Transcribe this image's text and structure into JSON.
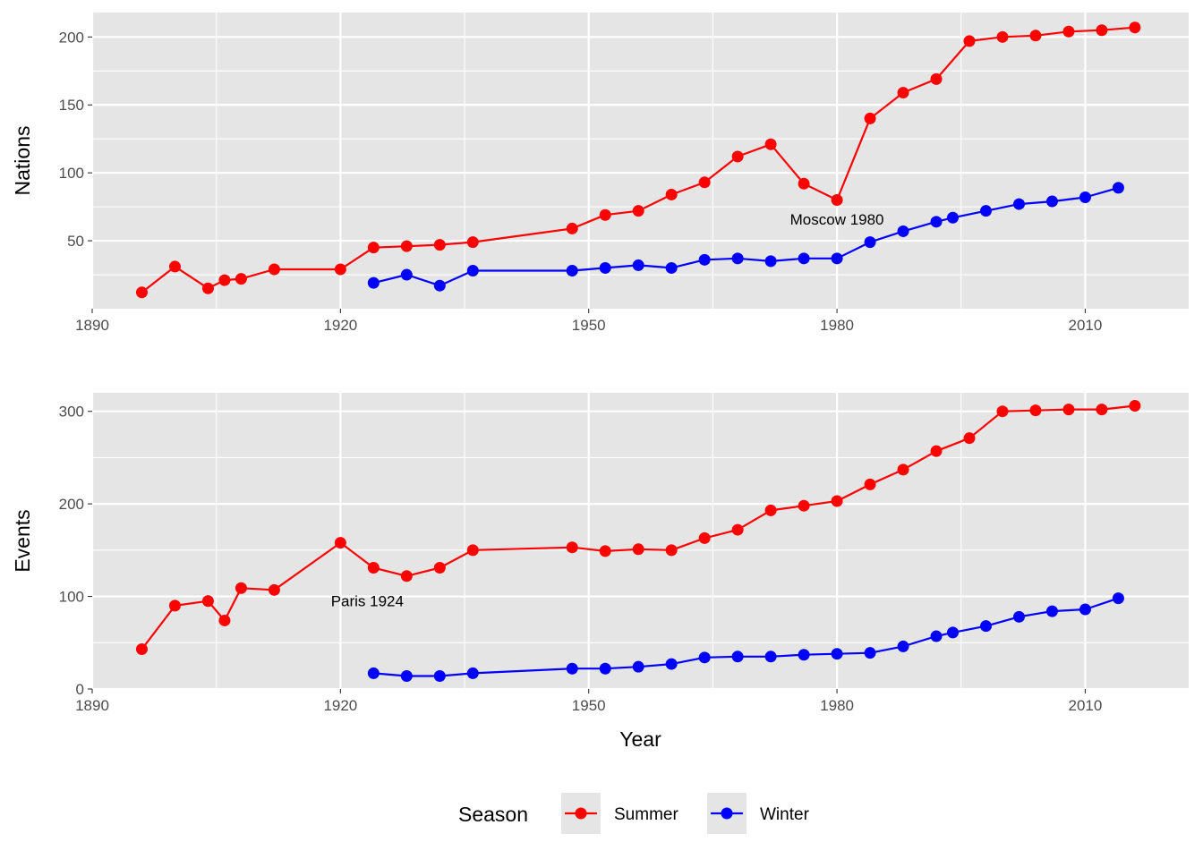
{
  "chart_data": [
    {
      "type": "line",
      "ylabel": "Nations",
      "xlabel": "",
      "xlim": [
        1890,
        2022.5
      ],
      "ylim": [
        0,
        218
      ],
      "xticks": [
        1890,
        1920,
        1950,
        1980,
        2010
      ],
      "yticks": [
        50,
        100,
        150,
        200
      ],
      "grid": true,
      "series": [
        {
          "name": "Summer",
          "color": "#ff0000",
          "x": [
            1896,
            1900,
            1904,
            1906,
            1908,
            1912,
            1920,
            1924,
            1928,
            1932,
            1936,
            1948,
            1952,
            1956,
            1960,
            1964,
            1968,
            1972,
            1976,
            1980,
            1984,
            1988,
            1992,
            1996,
            2000,
            2004,
            2008,
            2012,
            2016
          ],
          "values": [
            12,
            31,
            15,
            21,
            22,
            29,
            29,
            45,
            46,
            47,
            49,
            59,
            69,
            72,
            84,
            93,
            112,
            121,
            92,
            80,
            140,
            159,
            169,
            197,
            200,
            201,
            204,
            205,
            207
          ]
        },
        {
          "name": "Winter",
          "color": "#0000ff",
          "x": [
            1924,
            1928,
            1932,
            1936,
            1948,
            1952,
            1956,
            1960,
            1964,
            1968,
            1972,
            1976,
            1980,
            1984,
            1988,
            1992,
            1994,
            1998,
            2002,
            2006,
            2010,
            2014
          ],
          "values": [
            19,
            25,
            17,
            28,
            28,
            30,
            32,
            30,
            36,
            37,
            35,
            37,
            37,
            49,
            57,
            64,
            67,
            72,
            77,
            79,
            82,
            89
          ]
        }
      ],
      "annotations": [
        {
          "text": "Moscow 1980",
          "x": 1980,
          "y": 66
        }
      ]
    },
    {
      "type": "line",
      "ylabel": "Events",
      "xlabel": "Year",
      "xlim": [
        1890,
        2022.5
      ],
      "ylim": [
        0,
        320
      ],
      "xticks": [
        1890,
        1920,
        1950,
        1980,
        2010
      ],
      "yticks": [
        0,
        100,
        200,
        300
      ],
      "grid": true,
      "series": [
        {
          "name": "Summer",
          "color": "#ff0000",
          "x": [
            1896,
            1900,
            1904,
            1906,
            1908,
            1912,
            1920,
            1924,
            1928,
            1932,
            1936,
            1948,
            1952,
            1956,
            1960,
            1964,
            1968,
            1972,
            1976,
            1980,
            1984,
            1988,
            1992,
            1996,
            2000,
            2004,
            2008,
            2012,
            2016
          ],
          "values": [
            43,
            90,
            95,
            74,
            109,
            107,
            158,
            131,
            122,
            131,
            150,
            153,
            149,
            151,
            150,
            163,
            172,
            193,
            198,
            203,
            221,
            237,
            257,
            271,
            300,
            301,
            302,
            302,
            306
          ]
        },
        {
          "name": "Winter",
          "color": "#0000ff",
          "x": [
            1924,
            1928,
            1932,
            1936,
            1948,
            1952,
            1956,
            1960,
            1964,
            1968,
            1972,
            1976,
            1980,
            1984,
            1988,
            1992,
            1994,
            1998,
            2002,
            2006,
            2010,
            2014
          ],
          "values": [
            17,
            14,
            14,
            17,
            22,
            22,
            24,
            27,
            34,
            35,
            35,
            37,
            38,
            39,
            46,
            57,
            61,
            68,
            78,
            84,
            86,
            98
          ]
        }
      ],
      "annotations": [
        {
          "text": "Paris 1924",
          "x": 1924,
          "y": 95
        }
      ]
    }
  ],
  "legend": {
    "title": "Season",
    "position": "bottom",
    "entries": [
      {
        "label": "Summer",
        "color": "#ff0000"
      },
      {
        "label": "Winter",
        "color": "#0000ff"
      }
    ]
  },
  "colors": {
    "panel_background": "#e5e5e5",
    "grid": "#ffffff",
    "summer": "#ff0000",
    "winter": "#0000ff"
  }
}
